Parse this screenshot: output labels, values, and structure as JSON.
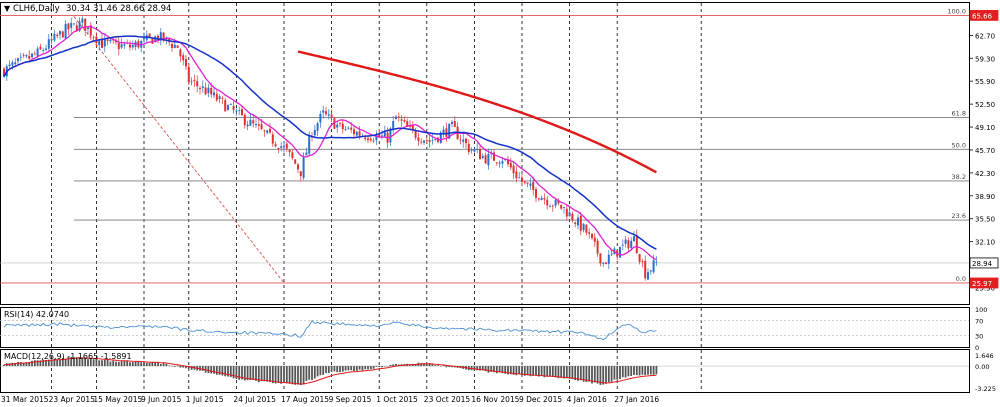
{
  "colors": {
    "candle_up": "#2a6fc9",
    "candle_down": "#e03030",
    "ma_fast": "#e020d0",
    "ma_mid": "#1530c8",
    "ma_slow": "#e01818",
    "fib_line": "#7a7a7a",
    "level_line": "#e05050",
    "rsi": "#4a8fd0",
    "macd_signal": "#e01818",
    "macd_hist": "#555555",
    "price_tag": "#e02020",
    "grid": "#000000"
  },
  "header": {
    "symbol_label": "CLH6,Daily",
    "ohlc_text": "30.34 31.46 28.66 28.94"
  },
  "chart_data": [
    {
      "type": "candlestick",
      "name": "price",
      "ylim": [
        23.0,
        67.5
      ],
      "y_ticks": [
        62.7,
        59.3,
        55.9,
        52.5,
        49.1,
        45.7,
        42.3,
        38.9,
        35.5,
        32.1,
        25.3
      ],
      "x_labels": [
        "31 Mar 2015",
        "23 Apr 2015",
        "15 May 2015",
        "9 Jun 2015",
        "1 Jul 2015",
        "24 Jul 2015",
        "17 Aug 2015",
        "9 Sep 2015",
        "1 Oct 2015",
        "23 Oct 2015",
        "16 Nov 2015",
        "9 Dec 2015",
        "4 Jan 2016",
        "27 Jan 2016"
      ],
      "bars": 234,
      "current_price": "28.94",
      "level_high": "65.66",
      "level_low": "25.97",
      "fibonacci": [
        {
          "label": "100.0",
          "price": 65.66
        },
        {
          "label": "61.8",
          "price": 50.5
        },
        {
          "label": "50.0",
          "price": 45.8
        },
        {
          "label": "38.2",
          "price": 41.1
        },
        {
          "label": "23.6",
          "price": 35.3
        },
        {
          "label": "0.0",
          "price": 25.97
        }
      ],
      "trend_line": {
        "from": {
          "bar": 25,
          "price": 65.5
        },
        "to": {
          "bar": 100,
          "price": 26.0
        }
      },
      "anchors": [
        [
          0,
          57.5
        ],
        [
          12,
          60.0
        ],
        [
          22,
          63.5
        ],
        [
          28,
          64.5
        ],
        [
          35,
          61.5
        ],
        [
          45,
          61.0
        ],
        [
          55,
          62.5
        ],
        [
          62,
          61.0
        ],
        [
          66,
          56.0
        ],
        [
          72,
          54.5
        ],
        [
          80,
          52.0
        ],
        [
          90,
          49.0
        ],
        [
          100,
          46.0
        ],
        [
          106,
          42.5
        ],
        [
          110,
          48.5
        ],
        [
          114,
          51.0
        ],
        [
          120,
          49.0
        ],
        [
          128,
          48.0
        ],
        [
          137,
          47.5
        ],
        [
          140,
          50.5
        ],
        [
          145,
          48.5
        ],
        [
          152,
          47.0
        ],
        [
          160,
          49.0
        ],
        [
          166,
          46.0
        ],
        [
          172,
          44.5
        ],
        [
          178,
          44.5
        ],
        [
          186,
          40.5
        ],
        [
          195,
          38.0
        ],
        [
          200,
          37.0
        ],
        [
          208,
          33.5
        ],
        [
          214,
          29.0
        ],
        [
          220,
          31.0
        ],
        [
          225,
          32.5
        ],
        [
          229,
          27.5
        ],
        [
          233,
          28.94
        ]
      ]
    },
    {
      "type": "line",
      "name": "RSI(14)",
      "label": "RSI(14) 42.0740",
      "ylim": [
        0,
        100
      ],
      "y_ticks": [
        100,
        70,
        30,
        0
      ],
      "anchors": [
        [
          0,
          56
        ],
        [
          20,
          60
        ],
        [
          35,
          51
        ],
        [
          55,
          55
        ],
        [
          66,
          44
        ],
        [
          90,
          36
        ],
        [
          106,
          30
        ],
        [
          110,
          66
        ],
        [
          130,
          55
        ],
        [
          140,
          63
        ],
        [
          152,
          52
        ],
        [
          170,
          46
        ],
        [
          190,
          42
        ],
        [
          205,
          38
        ],
        [
          214,
          22
        ],
        [
          222,
          60
        ],
        [
          229,
          38
        ],
        [
          233,
          42
        ]
      ]
    },
    {
      "type": "bar+line",
      "name": "MACD",
      "label": "MACD(12,26,9) -1.1665 -1.5891",
      "ylim": [
        -3.8,
        2.2
      ],
      "y_ticks": [
        1.646,
        0.0,
        -3.225
      ],
      "anchors": [
        [
          0,
          0.3
        ],
        [
          15,
          0.9
        ],
        [
          25,
          1.3
        ],
        [
          40,
          0.7
        ],
        [
          55,
          0.5
        ],
        [
          66,
          -0.4
        ],
        [
          85,
          -2.0
        ],
        [
          100,
          -2.6
        ],
        [
          106,
          -2.7
        ],
        [
          115,
          -1.0
        ],
        [
          128,
          -0.6
        ],
        [
          140,
          0.3
        ],
        [
          150,
          0.4
        ],
        [
          162,
          -0.3
        ],
        [
          180,
          -1.2
        ],
        [
          200,
          -1.8
        ],
        [
          214,
          -2.7
        ],
        [
          220,
          -1.8
        ],
        [
          226,
          -1.3
        ],
        [
          233,
          -1.17
        ]
      ]
    }
  ]
}
